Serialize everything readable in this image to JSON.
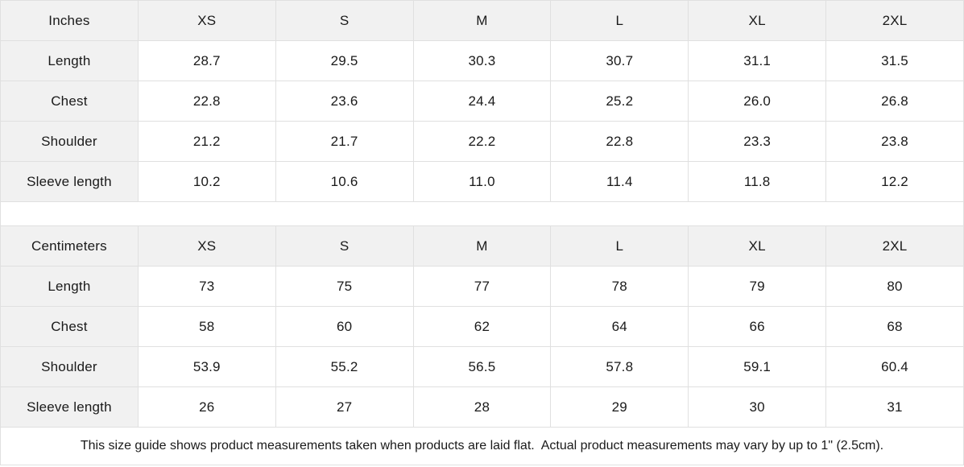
{
  "colors": {
    "label_cell_background": "#f1f1f1",
    "grid_border": "#e0e0e0",
    "text": "#1a1a1a",
    "data_cell_background": "#ffffff"
  },
  "tables": [
    {
      "unit_label": "Inches",
      "sizes": [
        "XS",
        "S",
        "M",
        "L",
        "XL",
        "2XL"
      ],
      "rows": [
        {
          "label": "Length",
          "values": [
            "28.7",
            "29.5",
            "30.3",
            "30.7",
            "31.1",
            "31.5"
          ]
        },
        {
          "label": "Chest",
          "values": [
            "22.8",
            "23.6",
            "24.4",
            "25.2",
            "26.0",
            "26.8"
          ]
        },
        {
          "label": "Shoulder",
          "values": [
            "21.2",
            "21.7",
            "22.2",
            "22.8",
            "23.3",
            "23.8"
          ]
        },
        {
          "label": "Sleeve length",
          "values": [
            "10.2",
            "10.6",
            "11.0",
            "11.4",
            "11.8",
            "12.2"
          ]
        }
      ]
    },
    {
      "unit_label": "Centimeters",
      "sizes": [
        "XS",
        "S",
        "M",
        "L",
        "XL",
        "2XL"
      ],
      "rows": [
        {
          "label": "Length",
          "values": [
            "73",
            "75",
            "77",
            "78",
            "79",
            "80"
          ]
        },
        {
          "label": "Chest",
          "values": [
            "58",
            "60",
            "62",
            "64",
            "66",
            "68"
          ]
        },
        {
          "label": "Shoulder",
          "values": [
            "53.9",
            "55.2",
            "56.5",
            "57.8",
            "59.1",
            "60.4"
          ]
        },
        {
          "label": "Sleeve length",
          "values": [
            "26",
            "27",
            "28",
            "29",
            "30",
            "31"
          ]
        }
      ]
    }
  ],
  "footer": {
    "note": "This size guide shows product measurements taken when products are laid flat.  Actual product measurements may vary by up to 1\" (2.5cm)."
  }
}
